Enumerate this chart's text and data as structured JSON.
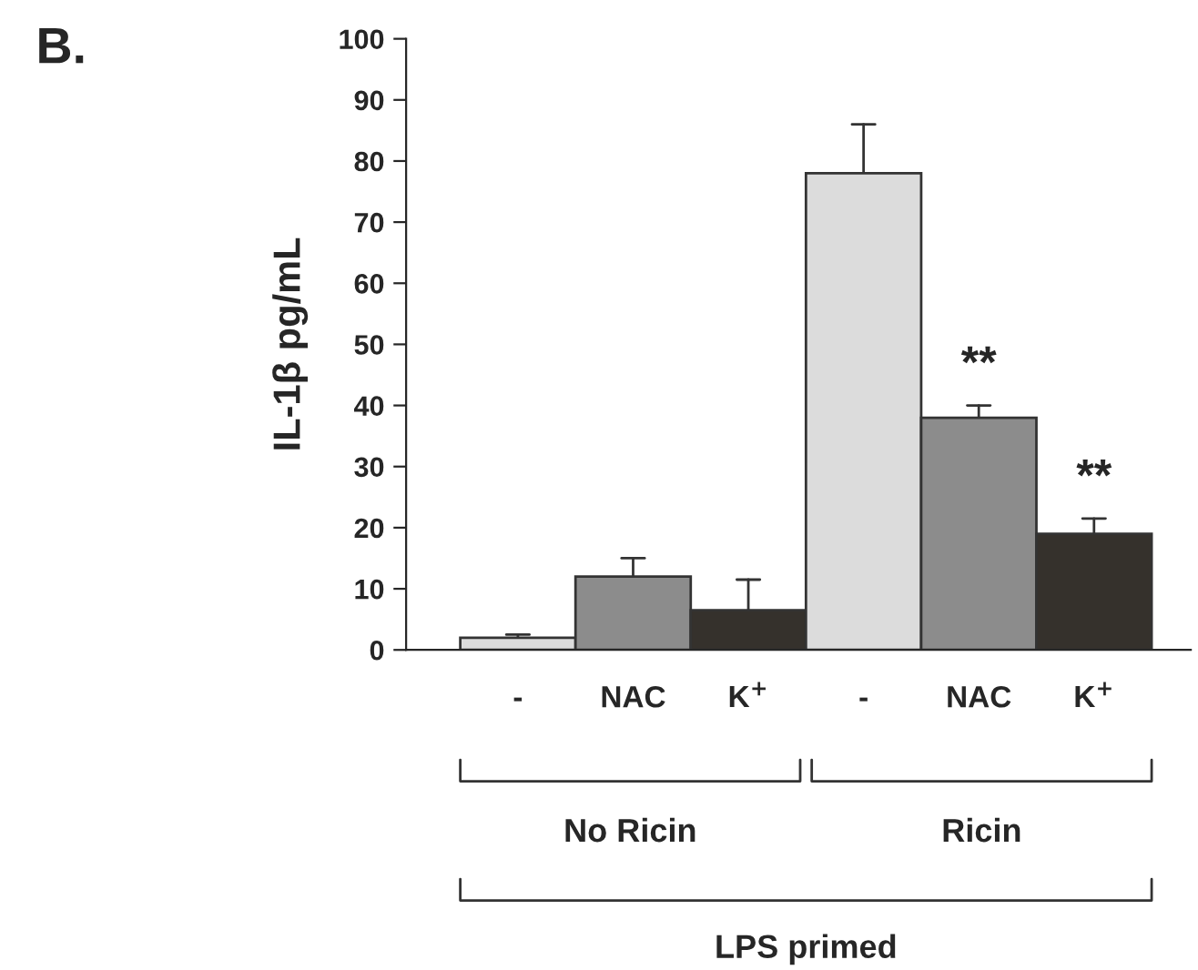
{
  "chart_data": {
    "type": "bar",
    "title": "B.",
    "ylabel": "IL-1β pg/mL",
    "categories": [
      "-",
      "NAC",
      "K$^{+}$",
      "-",
      "NAC",
      "K$^{+}$"
    ],
    "values": [
      2,
      12,
      6.5,
      78,
      38,
      19
    ],
    "colors": [
      "#dcdcdc",
      "#8c8c8c",
      "#35312c",
      "#dcdcdc",
      "#8c8c8c",
      "#35312c"
    ],
    "errors": [
      [
        2,
        2.5
      ],
      [
        12,
        15
      ],
      [
        6.5,
        11.5
      ],
      [
        78,
        86
      ],
      [
        38,
        40
      ],
      [
        19,
        21.5
      ]
    ],
    "value_labels": [
      null,
      null,
      null,
      null,
      "**",
      "**"
    ],
    "ylim": [
      0,
      100
    ],
    "yticks": [
      0,
      10,
      20,
      30,
      40,
      50,
      60,
      70,
      80,
      90,
      100
    ],
    "annotations": [
      "No Ricin",
      "Ricin",
      "LPS primed"
    ]
  }
}
